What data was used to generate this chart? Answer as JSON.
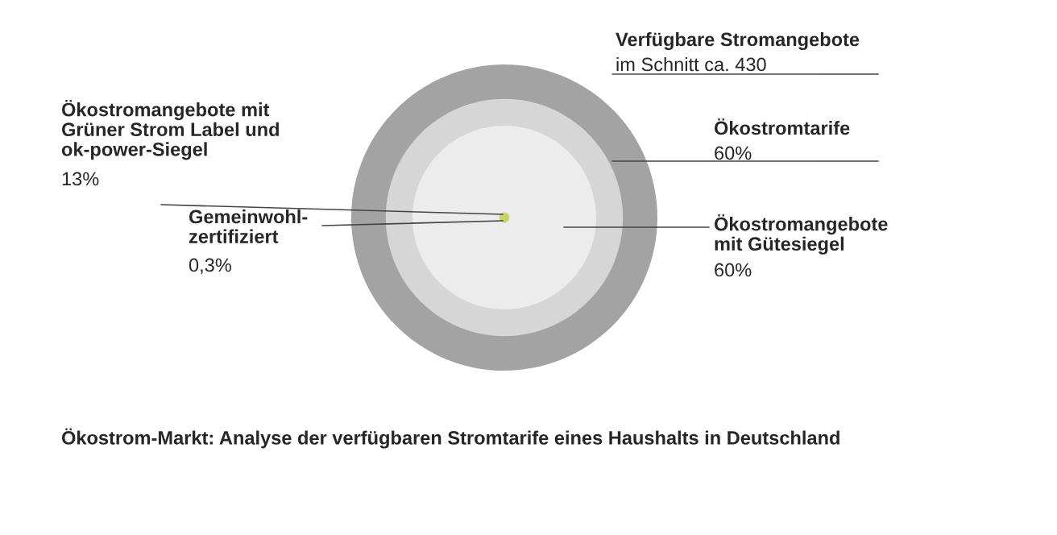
{
  "chart_data": {
    "type": "other",
    "title": "Ökostrom-Markt: Analyse der verfügbaren Stromtarife eines Haushalts in Deutschland",
    "categories": [
      "Verfügbare Stromangebote",
      "Ökostromtarife",
      "Ökostromangebote\nmit Gütesiegel",
      "Ökostromangebote mit\nGrüner Strom Label und\nok-power-Siegel",
      "Gemeinwohl-\nzertifiziert"
    ],
    "values": [
      430,
      60,
      60,
      13,
      0.3
    ],
    "value_labels": [
      "im Schnitt ca. 430",
      "60%",
      "60%",
      "13%",
      "0,3%"
    ],
    "colors": [
      "#a3a3a3",
      "#d6d6d6",
      "#ececec",
      null,
      "#c8d46a"
    ]
  }
}
